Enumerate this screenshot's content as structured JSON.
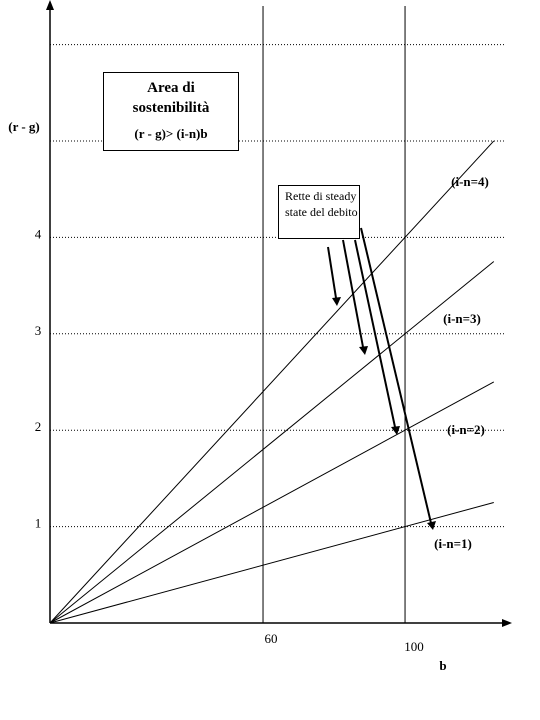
{
  "chart_data": {
    "type": "line",
    "x_label": "b",
    "y_label": "(r - g)",
    "x": [
      0,
      125
    ],
    "series": [
      {
        "name": "(i-n=1)",
        "color": "#000000",
        "values": [
          0,
          1.25
        ]
      },
      {
        "name": "(i-n=2)",
        "color": "#000000",
        "values": [
          0,
          2.5
        ]
      },
      {
        "name": "(i-n=3)",
        "color": "#000000",
        "values": [
          0,
          3.75
        ]
      },
      {
        "name": "(i-n=4)",
        "color": "#000000",
        "values": [
          0,
          5
        ]
      }
    ],
    "xlim": [
      0,
      129
    ],
    "ylim": [
      0,
      6.4
    ],
    "xticks": [
      60,
      100
    ],
    "yticks": [
      1,
      2,
      3,
      4
    ],
    "y_grid": [
      1,
      2,
      3,
      4,
      5,
      6
    ],
    "grid_style": "dotted",
    "annotations": [
      {
        "title": "Area di sostenibilità",
        "text": "(r - g)> (i-n)b"
      },
      {
        "text": "Rette di steady state del debito"
      }
    ]
  }
}
